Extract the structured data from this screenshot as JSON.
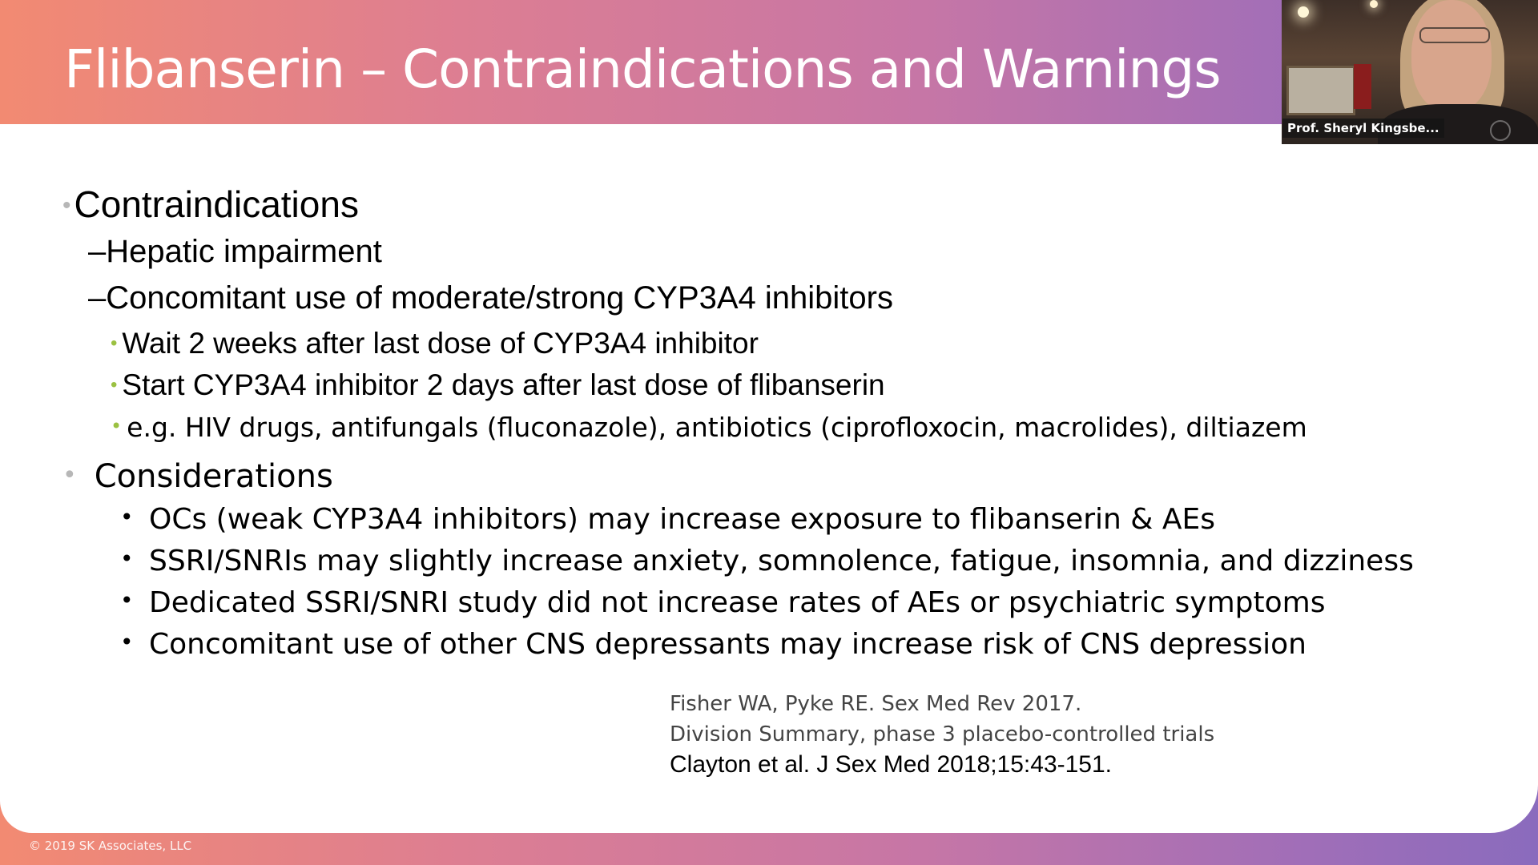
{
  "slide": {
    "title": "Flibanserin – Contraindications and Warnings",
    "section1": {
      "heading": "Contraindications",
      "items": [
        "–Hepatic impairment",
        "–Concomitant use of moderate/strong CYP3A4 inhibitors"
      ],
      "subitems": [
        "Wait 2 weeks after last dose of CYP3A4 inhibitor",
        "Start CYP3A4 inhibitor 2 days after last dose of flibanserin",
        "e.g. HIV drugs, antifungals (fluconazole), antibiotics (ciprofloxocin, macrolides), diltiazem"
      ]
    },
    "section2": {
      "heading": "Considerations",
      "items": [
        "OCs (weak CYP3A4 inhibitors) may increase exposure to flibanserin & AEs",
        "SSRI/SNRIs may slightly increase anxiety, somnolence, fatigue, insomnia, and dizziness",
        "Dedicated SSRI/SNRI study did not increase rates of AEs or psychiatric symptoms",
        "Concomitant use of other CNS depressants may increase risk of CNS depression"
      ]
    },
    "references": [
      "Fisher WA, Pyke RE. Sex Med Rev 2017.",
      "Division Summary, phase 3 placebo-controlled trials",
      "Clayton  et al. J Sex Med 2018;15:43-151."
    ],
    "footer": "© 2019 SK Associates, LLC"
  },
  "video": {
    "participant_name": "Prof. Sheryl Kingsbe..."
  },
  "colors": {
    "accent_green": "#9bc142",
    "bullet_gray": "#b7b7b7",
    "gradient_start": "#f28a72",
    "gradient_end": "#8a6bbd"
  }
}
